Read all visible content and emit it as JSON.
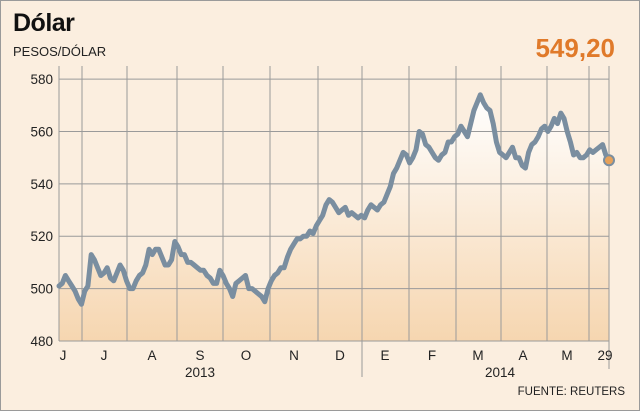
{
  "chart_data": {
    "type": "area",
    "title": "Dólar",
    "ylabel": "PESOS/DÓLAR",
    "last_value_label": "549,20",
    "source": "FUENTE: REUTERS",
    "ylim": [
      480,
      585
    ],
    "yticks": [
      480,
      500,
      520,
      540,
      560,
      580
    ],
    "grid_vertical": true,
    "month_labels": [
      "J",
      "J",
      "A",
      "S",
      "O",
      "N",
      "D",
      "E",
      "F",
      "M",
      "A",
      "M",
      "29"
    ],
    "year_labels": [
      "2013",
      "2014"
    ],
    "series": [
      {
        "values": [
          501,
          502,
          505,
          503,
          501,
          499,
          496,
          494,
          499,
          501,
          513,
          511,
          508,
          505,
          506,
          508,
          504,
          503,
          506,
          509,
          507,
          503,
          500,
          500,
          503,
          505,
          506,
          509,
          515,
          513,
          515,
          515,
          512,
          509,
          509,
          511,
          518,
          516,
          513,
          513,
          510,
          510,
          509,
          508,
          507,
          507,
          505,
          504,
          502,
          502,
          507,
          505,
          502,
          500,
          497,
          502,
          503,
          504,
          505,
          500,
          500,
          499,
          498,
          497,
          495,
          500,
          503,
          505,
          506,
          508,
          508,
          512,
          515,
          517,
          519,
          519,
          520,
          520,
          522,
          521,
          524,
          526,
          528,
          532,
          534,
          533,
          531,
          529,
          530,
          531,
          528,
          529,
          528,
          527,
          528,
          527,
          530,
          532,
          531,
          530,
          532,
          533,
          536,
          539,
          544,
          546,
          549,
          552,
          551,
          548,
          550,
          553,
          560,
          559,
          555,
          554,
          552,
          550,
          549,
          551,
          552,
          556,
          556,
          558,
          559,
          562,
          560,
          558,
          563,
          568,
          571,
          574,
          571,
          569,
          568,
          563,
          556,
          552,
          551,
          550,
          552,
          554,
          550,
          550,
          547,
          546,
          552,
          555,
          556,
          558,
          561,
          562,
          560,
          562,
          565,
          563,
          567,
          565,
          560,
          556,
          551,
          552,
          550,
          550,
          551,
          553,
          552,
          553,
          554,
          555,
          551,
          549
        ]
      }
    ],
    "colors": {
      "line": "#7a8ea0",
      "fill_top": "#ffffff",
      "fill_bottom": "#f6d6b0",
      "background": "#fbeedf",
      "grid": "#9a9a9a",
      "last_point": "#e6a15a",
      "last_value": "#e07a2a"
    }
  }
}
